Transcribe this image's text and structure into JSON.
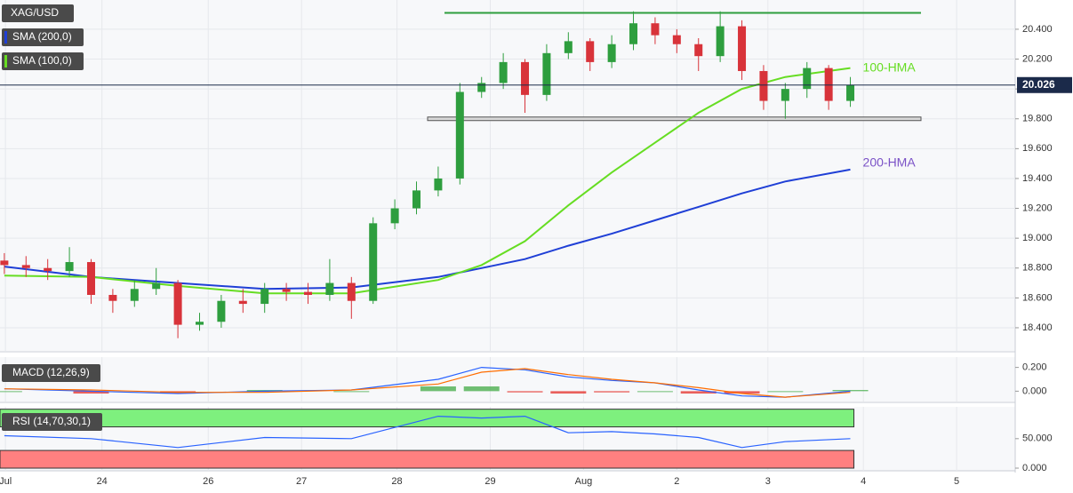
{
  "chart_data": {
    "type": "candlestick",
    "title": "XAG/USD",
    "up_color": "#2e9e3e",
    "down_color": "#d8333a",
    "xlim": [
      -0.2,
      46.6
    ],
    "xticks": [
      {
        "value": 0.05,
        "label": "Jul"
      },
      {
        "value": 4.5,
        "label": "24"
      },
      {
        "value": 9.4,
        "label": "26"
      },
      {
        "value": 13.7,
        "label": "27"
      },
      {
        "value": 18.1,
        "label": "28"
      },
      {
        "value": 22.4,
        "label": "29"
      },
      {
        "value": 26.7,
        "label": "Aug"
      },
      {
        "value": 31.0,
        "label": "2"
      },
      {
        "value": 35.2,
        "label": "3"
      },
      {
        "value": 39.6,
        "label": "4"
      },
      {
        "value": 43.9,
        "label": "5"
      }
    ],
    "ylim": [
      18.245,
      20.596
    ],
    "yticks": [
      {
        "value": 18.4,
        "label": "18.400"
      },
      {
        "value": 18.6,
        "label": "18.600"
      },
      {
        "value": 18.8,
        "label": "18.800"
      },
      {
        "value": 19.0,
        "label": "19.000"
      },
      {
        "value": 19.2,
        "label": "19.200"
      },
      {
        "value": 19.4,
        "label": "19.400"
      },
      {
        "value": 19.6,
        "label": "19.600"
      },
      {
        "value": 19.8,
        "label": "19.800"
      },
      {
        "value": 20.0,
        "label": "20.000"
      },
      {
        "value": 20.2,
        "label": "20.200"
      },
      {
        "value": 20.4,
        "label": "20.400"
      }
    ],
    "grid": true,
    "candles": {
      "open": [
        18.85,
        18.82,
        18.8,
        18.78,
        18.84,
        18.62,
        18.58,
        18.66,
        18.7,
        18.42,
        18.44,
        18.58,
        18.56,
        18.66,
        18.64,
        18.62,
        18.7,
        18.58,
        19.1,
        19.2,
        19.32,
        19.4,
        19.98,
        20.04,
        20.18,
        19.96,
        20.24,
        20.32,
        20.18,
        20.3,
        20.44,
        20.36,
        20.3,
        20.22,
        20.42,
        20.12,
        19.92,
        20.0,
        20.14,
        19.92
      ],
      "high": [
        18.9,
        18.88,
        18.86,
        18.94,
        18.86,
        18.66,
        18.72,
        18.8,
        18.72,
        18.5,
        18.62,
        18.66,
        18.7,
        18.7,
        18.7,
        18.86,
        18.74,
        19.14,
        19.26,
        19.38,
        19.48,
        20.04,
        20.08,
        20.24,
        20.2,
        20.3,
        20.38,
        20.34,
        20.36,
        20.52,
        20.48,
        20.4,
        20.34,
        20.52,
        20.46,
        20.16,
        20.04,
        20.18,
        20.16,
        20.08
      ],
      "low": [
        18.76,
        18.74,
        18.72,
        18.74,
        18.56,
        18.5,
        18.54,
        18.62,
        18.33,
        18.38,
        18.4,
        18.5,
        18.5,
        18.58,
        18.56,
        18.58,
        18.46,
        18.56,
        19.06,
        19.16,
        19.28,
        19.36,
        19.94,
        20.0,
        19.84,
        19.92,
        20.2,
        20.12,
        20.14,
        20.26,
        20.3,
        20.24,
        20.12,
        20.18,
        20.06,
        19.86,
        19.8,
        19.94,
        19.86,
        19.88
      ],
      "close": [
        18.82,
        18.8,
        18.78,
        18.84,
        18.62,
        18.58,
        18.66,
        18.7,
        18.42,
        18.44,
        18.58,
        18.56,
        18.66,
        18.64,
        18.62,
        18.7,
        18.58,
        19.1,
        19.2,
        19.32,
        19.4,
        19.98,
        20.04,
        20.18,
        19.96,
        20.24,
        20.32,
        20.18,
        20.3,
        20.44,
        20.36,
        20.3,
        20.22,
        20.42,
        20.12,
        19.92,
        20.0,
        20.14,
        19.92,
        20.026
      ]
    },
    "series": [
      {
        "name": "SMA (200,0)",
        "label": "200-HMA",
        "color": "#1f3fd6",
        "label_color": "#7b52c7",
        "x": [
          0,
          4,
          8,
          12,
          16,
          20,
          22,
          24,
          26,
          28,
          30,
          32,
          34,
          36,
          39
        ],
        "values": [
          18.81,
          18.74,
          18.7,
          18.66,
          18.67,
          18.74,
          18.8,
          18.86,
          18.95,
          19.03,
          19.12,
          19.21,
          19.3,
          19.38,
          19.46
        ]
      },
      {
        "name": "SMA (100,0)",
        "label": "100-HMA",
        "color": "#66dd22",
        "label_color": "#66dd22",
        "x": [
          0,
          4,
          8,
          12,
          16,
          20,
          22,
          24,
          26,
          28,
          30,
          32,
          34,
          36,
          39
        ],
        "values": [
          18.75,
          18.74,
          18.68,
          18.63,
          18.63,
          18.72,
          18.82,
          18.98,
          19.22,
          19.44,
          19.64,
          19.84,
          20.0,
          20.08,
          20.14
        ]
      }
    ],
    "levels": [
      {
        "value": 20.51,
        "color": "#2e9e3e"
      },
      {
        "value": 19.8,
        "color": "#555555"
      }
    ],
    "macd": {
      "name": "MACD (12,26,9)",
      "ylim": [
        -0.087,
        0.287
      ],
      "yticks": [
        {
          "value": 0.0,
          "label": "0.000"
        },
        {
          "value": 0.2,
          "label": "0.200"
        }
      ],
      "x": [
        0,
        4,
        8,
        12,
        16,
        20,
        22,
        24,
        26,
        28,
        30,
        32,
        34,
        36,
        39
      ],
      "macd": [
        0.02,
        0.0,
        -0.02,
        0.0,
        0.01,
        0.1,
        0.2,
        0.18,
        0.12,
        0.09,
        0.07,
        0.01,
        -0.04,
        -0.05,
        0.0
      ],
      "signal": [
        0.02,
        0.01,
        -0.01,
        -0.01,
        0.01,
        0.06,
        0.16,
        0.19,
        0.14,
        0.1,
        0.07,
        0.03,
        -0.02,
        -0.05,
        -0.01
      ],
      "histogram": [
        0.0,
        -0.02,
        -0.02,
        0.01,
        0.0,
        0.04,
        0.04,
        -0.01,
        -0.02,
        -0.01,
        0.0,
        -0.02,
        -0.02,
        0.0,
        0.01
      ],
      "macd_color": "#2962ff",
      "signal_color": "#ff6d00"
    },
    "rsi": {
      "name": "RSI (14,70,30,1)",
      "ylim": [
        -1.5,
        101
      ],
      "yticks": [
        {
          "value": 0,
          "label": "0.000"
        },
        {
          "value": 50,
          "label": "50.000"
        }
      ],
      "overbought": 70,
      "oversold": 30,
      "top": 100,
      "x": [
        0,
        4,
        8,
        12,
        16,
        20,
        22,
        24,
        26,
        28,
        30,
        32,
        34,
        36,
        39
      ],
      "values": [
        55,
        50,
        35,
        52,
        50,
        88,
        85,
        88,
        60,
        62,
        58,
        52,
        35,
        45,
        50
      ],
      "color": "#2962ff"
    }
  }
}
